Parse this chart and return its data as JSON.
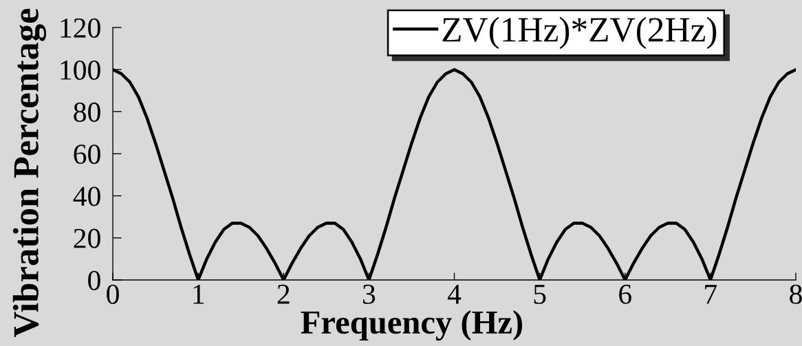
{
  "chart_data": {
    "type": "line",
    "xlabel": "Frequency (Hz)",
    "ylabel": "Vibration Percentage",
    "x": [
      0,
      0.1,
      0.2,
      0.3,
      0.4,
      0.5,
      0.6,
      0.7,
      0.8,
      0.9,
      1,
      1.1,
      1.2,
      1.3,
      1.4,
      1.5,
      1.6,
      1.7,
      1.8,
      1.9,
      2,
      2.1,
      2.2,
      2.3,
      2.4,
      2.5,
      2.6,
      2.7,
      2.8,
      2.9,
      3,
      3.1,
      3.2,
      3.3,
      3.4,
      3.5,
      3.6,
      3.7,
      3.8,
      3.9,
      4,
      4.1,
      4.2,
      4.3,
      4.4,
      4.5,
      4.6,
      4.7,
      4.8,
      4.9,
      5,
      5.1,
      5.2,
      5.3,
      5.4,
      5.5,
      5.6,
      5.7,
      5.8,
      5.9,
      6,
      6.1,
      6.2,
      6.3,
      6.4,
      6.5,
      6.6,
      6.7,
      6.8,
      6.9,
      7,
      7.1,
      7.2,
      7.3,
      7.4,
      7.5,
      7.6,
      7.7,
      7.8,
      7.9,
      8
    ],
    "series": [
      {
        "name": "ZV(1Hz)*ZV(2Hz)",
        "color": "#000000",
        "values": [
          100,
          98,
          94,
          87,
          77,
          65,
          52,
          39,
          25,
          12,
          0,
          10,
          18,
          24,
          27,
          27,
          25,
          21,
          15,
          8,
          0,
          8,
          15,
          21,
          25,
          27,
          27,
          24,
          18,
          10,
          0,
          12,
          25,
          39,
          52,
          65,
          77,
          87,
          94,
          98,
          100,
          98,
          94,
          87,
          77,
          65,
          52,
          39,
          25,
          12,
          0,
          10,
          18,
          24,
          27,
          27,
          25,
          21,
          15,
          8,
          0,
          8,
          15,
          21,
          25,
          27,
          27,
          24,
          18,
          10,
          0,
          12,
          25,
          39,
          52,
          65,
          77,
          87,
          94,
          98,
          100
        ]
      }
    ],
    "xlim": [
      0,
      8
    ],
    "ylim": [
      0,
      120
    ],
    "xticks": [
      0,
      1,
      2,
      3,
      4,
      5,
      6,
      7,
      8
    ],
    "yticks": [
      0,
      20,
      40,
      60,
      80,
      100,
      120
    ],
    "grid": false,
    "legend": "top right",
    "marker": "none",
    "line_style": "solid"
  }
}
